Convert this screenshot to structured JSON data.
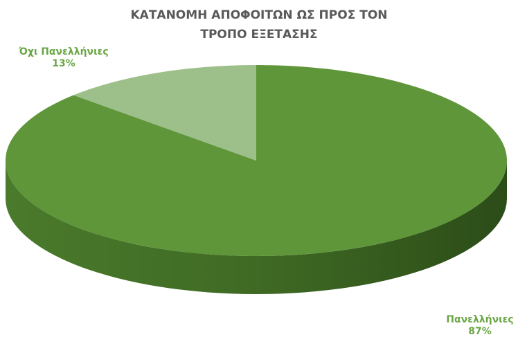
{
  "chart_data": {
    "type": "pie3d",
    "title": "ΚΑΤΑΝΟΜΗ ΑΠΟΦΟΙΤΩΝ ΩΣ ΠΡΟΣ ΤΟΝ ΤΡΟΠΟ ΕΞΕΤΑΣΗΣ",
    "categories": [
      "Πανελλήνιες",
      "Όχι Πανελλήνιες"
    ],
    "values": [
      87,
      13
    ],
    "value_labels": [
      "87%",
      "13%"
    ],
    "colors": [
      "#5f963a",
      "#9dc08a"
    ]
  }
}
